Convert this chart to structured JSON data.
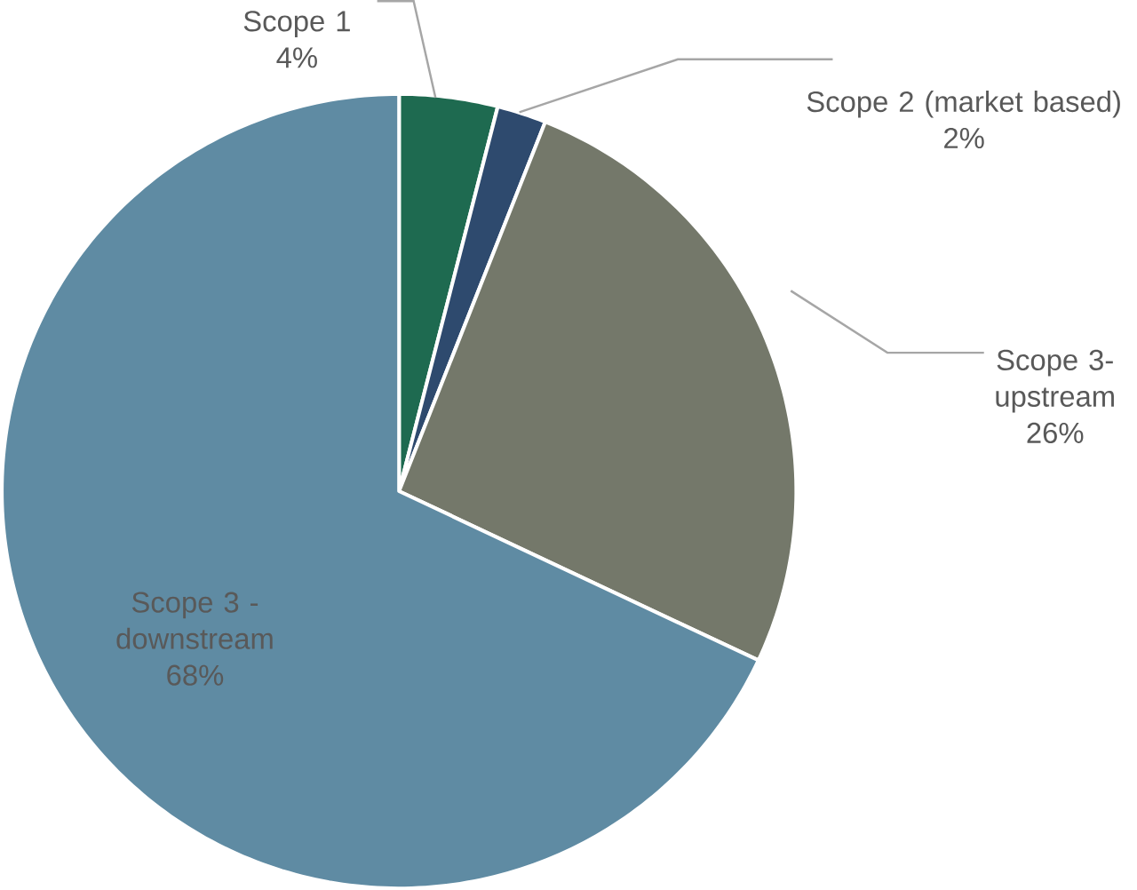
{
  "chart_data": {
    "type": "pie",
    "categories": [
      "Scope 1",
      "Scope 2 (market based)",
      "Scope 3- upstream",
      "Scope 3 - downstream"
    ],
    "values": [
      4,
      2,
      26,
      68
    ],
    "value_labels": [
      "4%",
      "2%",
      "26%",
      "68%"
    ],
    "colors": [
      "#1e6a50",
      "#2e4a6e",
      "#74786a",
      "#5f8ba3"
    ]
  }
}
